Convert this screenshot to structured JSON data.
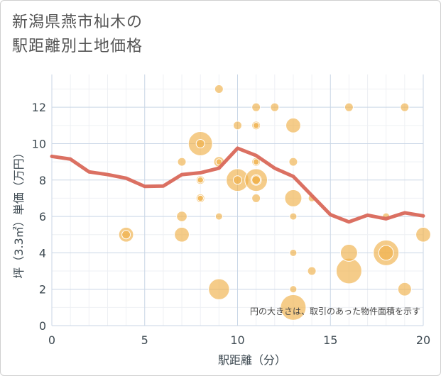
{
  "title_line1": "新潟県燕市杣木の",
  "title_line2": "駅距離別土地価格",
  "chart_data": {
    "type": "scatter",
    "title": "新潟県燕市杣木の駅距離別土地価格",
    "xlabel": "駅距離（分）",
    "ylabel": "坪（3.3㎡）単価（万円）",
    "xlim": [
      0,
      20
    ],
    "ylim": [
      0,
      13.8
    ],
    "xticks": [
      0,
      5,
      10,
      15,
      20
    ],
    "yticks": [
      0,
      2,
      4,
      6,
      8,
      10,
      12
    ],
    "grid": true,
    "note": "円の大きさは、取引のあった物件面積を示す",
    "bubble_color": "#f0b14a",
    "line_color": "#d9685a",
    "points": [
      {
        "x": 4,
        "y": 5,
        "size": 3
      },
      {
        "x": 4,
        "y": 5,
        "size": 1
      },
      {
        "x": 7,
        "y": 9,
        "size": 1
      },
      {
        "x": 7,
        "y": 6,
        "size": 1.5
      },
      {
        "x": 7,
        "y": 5,
        "size": 3
      },
      {
        "x": 8,
        "y": 10,
        "size": 8
      },
      {
        "x": 8,
        "y": 10,
        "size": 1
      },
      {
        "x": 8,
        "y": 8,
        "size": 1
      },
      {
        "x": 8,
        "y": 8,
        "size": 0.5
      },
      {
        "x": 8,
        "y": 7,
        "size": 1
      },
      {
        "x": 8,
        "y": 7,
        "size": 0.5
      },
      {
        "x": 9,
        "y": 13,
        "size": 1
      },
      {
        "x": 9,
        "y": 9,
        "size": 1.5
      },
      {
        "x": 9,
        "y": 9,
        "size": 0.5
      },
      {
        "x": 9,
        "y": 6,
        "size": 0.7
      },
      {
        "x": 9,
        "y": 2,
        "size": 6
      },
      {
        "x": 10,
        "y": 11,
        "size": 1
      },
      {
        "x": 10,
        "y": 8,
        "size": 7
      },
      {
        "x": 10,
        "y": 8,
        "size": 1
      },
      {
        "x": 11,
        "y": 12,
        "size": 1
      },
      {
        "x": 11,
        "y": 11,
        "size": 1
      },
      {
        "x": 11,
        "y": 11,
        "size": 0.5
      },
      {
        "x": 11,
        "y": 9,
        "size": 1
      },
      {
        "x": 11,
        "y": 9,
        "size": 0.5
      },
      {
        "x": 11,
        "y": 8,
        "size": 1
      },
      {
        "x": 11,
        "y": 8,
        "size": 1.5
      },
      {
        "x": 11,
        "y": 8,
        "size": 7
      },
      {
        "x": 11,
        "y": 7,
        "size": 1
      },
      {
        "x": 12,
        "y": 12,
        "size": 1
      },
      {
        "x": 13,
        "y": 11,
        "size": 3
      },
      {
        "x": 13,
        "y": 9,
        "size": 1
      },
      {
        "x": 13,
        "y": 7,
        "size": 4
      },
      {
        "x": 13,
        "y": 6,
        "size": 0.7
      },
      {
        "x": 13,
        "y": 4,
        "size": 0.7
      },
      {
        "x": 13,
        "y": 2,
        "size": 0.7
      },
      {
        "x": 13,
        "y": 1,
        "size": 9
      },
      {
        "x": 14,
        "y": 7,
        "size": 0.7
      },
      {
        "x": 14,
        "y": 3,
        "size": 1
      },
      {
        "x": 16,
        "y": 12,
        "size": 1
      },
      {
        "x": 16,
        "y": 4,
        "size": 4
      },
      {
        "x": 16,
        "y": 3,
        "size": 9
      },
      {
        "x": 18,
        "y": 6,
        "size": 0.7
      },
      {
        "x": 18,
        "y": 4,
        "size": 9
      },
      {
        "x": 18,
        "y": 4,
        "size": 3
      },
      {
        "x": 19,
        "y": 12,
        "size": 1
      },
      {
        "x": 19,
        "y": 2,
        "size": 2.5
      },
      {
        "x": 20,
        "y": 5,
        "size": 3
      }
    ],
    "trend_line": [
      {
        "x": 0,
        "y": 9.3
      },
      {
        "x": 1,
        "y": 9.15
      },
      {
        "x": 2,
        "y": 8.45
      },
      {
        "x": 3,
        "y": 8.3
      },
      {
        "x": 4,
        "y": 8.1
      },
      {
        "x": 5,
        "y": 7.65
      },
      {
        "x": 6,
        "y": 7.67
      },
      {
        "x": 7,
        "y": 8.3
      },
      {
        "x": 8,
        "y": 8.4
      },
      {
        "x": 9,
        "y": 8.65
      },
      {
        "x": 10,
        "y": 9.75
      },
      {
        "x": 11,
        "y": 9.35
      },
      {
        "x": 12,
        "y": 8.65
      },
      {
        "x": 13,
        "y": 8.2
      },
      {
        "x": 14,
        "y": 7.15
      },
      {
        "x": 15,
        "y": 6.1
      },
      {
        "x": 16,
        "y": 5.7
      },
      {
        "x": 17,
        "y": 6.07
      },
      {
        "x": 18,
        "y": 5.87
      },
      {
        "x": 19,
        "y": 6.2
      },
      {
        "x": 20,
        "y": 6.03
      }
    ]
  }
}
